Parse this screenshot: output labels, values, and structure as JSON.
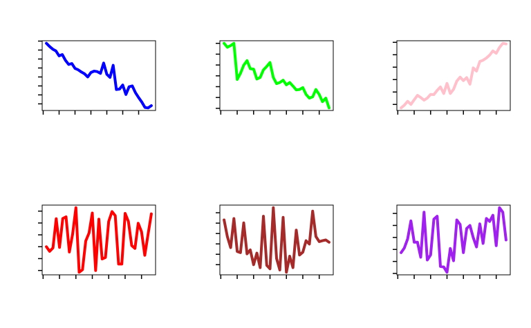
{
  "chart_data": [
    {
      "type": "line",
      "color": "#0000ff",
      "grid": false,
      "x_ticks": [
        0,
        5,
        10,
        15,
        20,
        25,
        30
      ],
      "values": [
        6.75,
        6.4,
        6.1,
        5.9,
        5.35,
        5.5,
        4.85,
        4.4,
        4.5,
        3.95,
        3.8,
        3.55,
        3.35,
        3.0,
        3.5,
        3.65,
        3.6,
        3.4,
        4.55,
        3.3,
        2.95,
        4.3,
        1.6,
        1.65,
        2.1,
        1.05,
        1.9,
        2.0,
        1.25,
        0.7,
        0.2,
        -0.4,
        -0.45,
        -0.2
      ]
    },
    {
      "type": "line",
      "color": "#00ff00",
      "grid": false,
      "x_ticks": [
        0,
        5,
        10,
        15,
        20,
        25,
        30
      ],
      "values": [
        6,
        5.64,
        5.79,
        6,
        2.66,
        3.23,
        3.98,
        4.4,
        3.66,
        3.62,
        2.7,
        2.85,
        3.55,
        3.87,
        4.23,
        2.85,
        2.28,
        2.38,
        2.6,
        2.17,
        2.38,
        2.06,
        1.7,
        1.74,
        1.91,
        1.28,
        0.94,
        1.06,
        1.74,
        1.28,
        0.62,
        0.94,
        0.04
      ]
    },
    {
      "type": "line",
      "color": "#ffc0cb",
      "grid": false,
      "x_ticks": [
        0,
        5,
        10,
        15,
        20,
        25,
        30
      ],
      "values": [
        -0.28,
        -0.06,
        0.25,
        0,
        0.38,
        0.73,
        0.56,
        0.34,
        0.51,
        0.81,
        0.79,
        1.13,
        1.41,
        0.88,
        1.69,
        0.88,
        1.22,
        1.88,
        2.2,
        1.92,
        2.16,
        1.63,
        2.94,
        2.68,
        3.46,
        3.56,
        3.74,
        3.97,
        4.31,
        4.12,
        4.59,
        4.92,
        4.87
      ]
    },
    {
      "type": "line",
      "color": "#ff0000",
      "grid": false,
      "x_ticks": [
        0,
        5,
        10,
        15,
        20,
        25,
        30
      ],
      "values": [
        2.0,
        1.61,
        1.9,
        4.36,
        1.94,
        4.38,
        4.52,
        1.55,
        3.06,
        5.29,
        -0.15,
        0.06,
        2.48,
        3.16,
        4.84,
        0,
        4.32,
        0.97,
        1.09,
        4.13,
        4.96,
        4.61,
        0.54,
        0.54,
        4.81,
        4.13,
        2.1,
        1.86,
        3.98,
        3.26,
        1.28,
        3.06,
        4.77
      ]
    },
    {
      "type": "line",
      "color": "#a52a2a",
      "grid": false,
      "x_ticks": [
        0,
        5,
        10,
        15,
        20,
        25,
        30
      ],
      "values": [
        4.31,
        2.71,
        1.64,
        4.44,
        1.27,
        1.16,
        4.02,
        1.04,
        1.42,
        0,
        1.11,
        -0.29,
        4.67,
        -0.07,
        -0.4,
        5.49,
        0.6,
        -0.51,
        4.56,
        -0.73,
        0.82,
        -0.29,
        3.33,
        0.93,
        1.2,
        2.31,
        1.98,
        5.16,
        2.71,
        2.22,
        2.31,
        2.38,
        2.16
      ]
    },
    {
      "type": "line",
      "color": "#a020f0",
      "grid": false,
      "x_ticks": [
        0,
        5,
        10,
        15,
        20,
        25,
        30
      ],
      "values": [
        1.73,
        2.12,
        2.88,
        4.38,
        2.6,
        2.6,
        1.35,
        5.1,
        1.12,
        1.54,
        4.52,
        4.77,
        0.58,
        0.54,
        0.1,
        2.08,
        1.06,
        4.46,
        4.08,
        1.73,
        3.75,
        4.0,
        2.98,
        2.21,
        4.13,
        2.5,
        4.58,
        4.33,
        4.85,
        2.31,
        5.48,
        5.1,
        2.79
      ]
    }
  ]
}
